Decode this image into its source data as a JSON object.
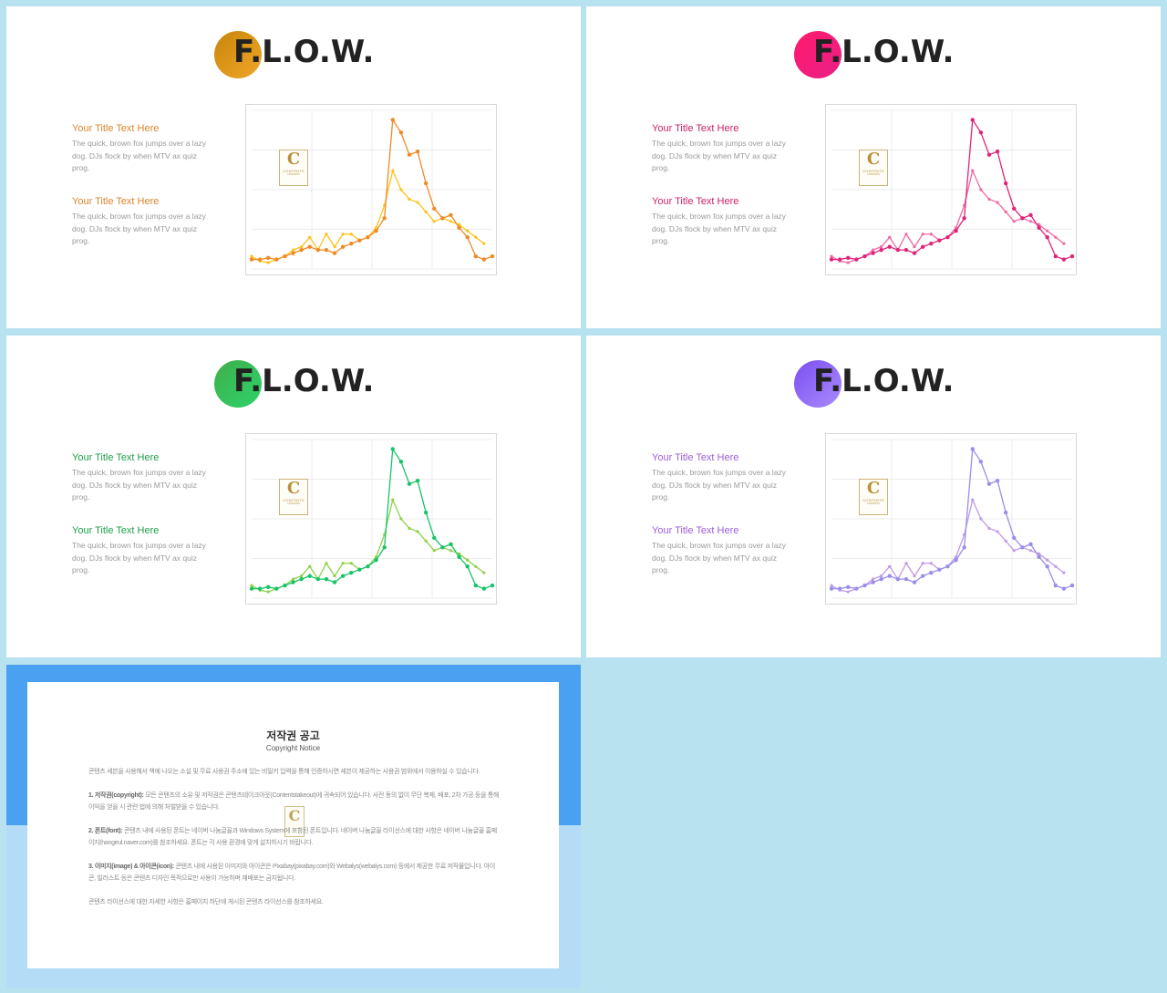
{
  "slides": [
    {
      "logo": "F.L.O.W.",
      "circle_gradient": [
        "#c8860a",
        "#f0a62a"
      ],
      "title_color": "#d9862a",
      "line_colors": [
        "#ffc21a",
        "#f08a24"
      ],
      "items": [
        {
          "title": "Your Title Text Here",
          "desc": "The quick, brown fox jumps over a lazy dog. DJs flock by when MTV ax quiz prog."
        },
        {
          "title": "Your Title Text Here",
          "desc": "The quick, brown fox jumps over a lazy dog. DJs flock by when MTV ax quiz prog."
        }
      ],
      "watermark": {
        "letter": "C",
        "text": "CONTENTS",
        "sub": "CONTENTS"
      }
    },
    {
      "logo": "F.L.O.W.",
      "circle_gradient": [
        "#ff1a6b",
        "#ea1f88"
      ],
      "title_color": "#cc1f6a",
      "line_colors": [
        "#f06aa6",
        "#e0247a"
      ],
      "items": [
        {
          "title": "Your Title Text Here",
          "desc": "The quick, brown fox jumps over a lazy dog. DJs flock by when MTV ax quiz prog."
        },
        {
          "title": "Your Title Text Here",
          "desc": "The quick, brown fox jumps over a lazy dog. DJs flock by when MTV ax quiz prog."
        }
      ],
      "watermark": {
        "letter": "C",
        "text": "CONTENTS",
        "sub": "CONTENTS"
      }
    },
    {
      "logo": "F.L.O.W.",
      "circle_gradient": [
        "#3fae4a",
        "#2ed26b"
      ],
      "title_color": "#1f9e4a",
      "line_colors": [
        "#8fd14a",
        "#16c466"
      ],
      "items": [
        {
          "title": "Your Title Text Here",
          "desc": "The quick, brown fox jumps over a lazy dog. DJs flock by when MTV ax quiz prog."
        },
        {
          "title": "Your Title Text Here",
          "desc": "The quick, brown fox jumps over a lazy dog. DJs flock by when MTV ax quiz prog."
        }
      ],
      "watermark": {
        "letter": "C",
        "text": "CONTENTS",
        "sub": "CONTENTS"
      }
    },
    {
      "logo": "F.L.O.W.",
      "circle_gradient": [
        "#7b4ff0",
        "#a98bff"
      ],
      "title_color": "#9a5fd8",
      "line_colors": [
        "#c09be8",
        "#9a8ee8"
      ],
      "items": [
        {
          "title": "Your Title Text Here",
          "desc": "The quick, brown fox jumps over a lazy dog. DJs flock by when MTV ax quiz prog."
        },
        {
          "title": "Your Title Text Here",
          "desc": "The quick, brown fox jumps over a lazy dog. DJs flock by when MTV ax quiz prog."
        }
      ],
      "watermark": {
        "letter": "C",
        "text": "CONTENTS",
        "sub": "CONTENTS"
      }
    }
  ],
  "chart_data": {
    "type": "line",
    "ylim": [
      0,
      100
    ],
    "grid": true,
    "series": [
      {
        "values": [
          8,
          5,
          4,
          6,
          8,
          12,
          14,
          20,
          12,
          22,
          14,
          22,
          22,
          18,
          20,
          26,
          40,
          62,
          50,
          44,
          42,
          36,
          30,
          32,
          30,
          28,
          24,
          20,
          16
        ]
      },
      {
        "values": [
          6,
          6,
          7,
          6,
          8,
          10,
          12,
          14,
          12,
          12,
          10,
          14,
          16,
          18,
          20,
          24,
          32,
          94,
          86,
          72,
          74,
          54,
          38,
          32,
          34,
          26,
          20,
          8,
          6,
          8
        ]
      }
    ]
  },
  "notice": {
    "title": "저작권 공고",
    "subtitle": "Copyright Notice",
    "intro": "콘텐츠 세븐을 사용해서 책에 나오는 소설 및 무료 사용권 주소에 있는 비밀키 입력을 통해 인증하시면 세븐이 제공하는 사용권 범위에서 이용하실 수 있습니다.",
    "p1_head": "1. 저작권(copyright):",
    "p1": "모든 콘텐츠의 소유 및 저작권은 콘텐츠테이크아웃(Contentstakeout)에 귀속되어 있습니다. 사전 동의 없이 무단 복제, 배포, 2차 가공 등을 통해 이익을 얻을 시 관련 법에 의해 처벌받을 수 있습니다.",
    "p2_head": "2. 폰트(font):",
    "p2": "콘텐츠 내에 사용된 폰트는 네이버 나눔글꼴과 Windows System에 포함된 폰트입니다. 네이버 나눔글꼴 라이선스에 대한 사항은 네이버 나눔글꼴 홈페이지(hangeul.naver.com)를 참조하세요. 폰트는 각 사용 환경에 맞게 설치하시기 바랍니다.",
    "p3_head": "3. 이미지(image) & 아이콘(icon):",
    "p3": "콘텐츠 내에 사용된 이미지와 아이콘은 Pixabay(pixabay.com)와 Webalys(webalys.com) 등에서 제공한 무료 저작물입니다. 아이콘, 일러스트 등은 콘텐츠 디자인 목적으로만 사용이 가능하며 재배포는 금지됩니다.",
    "outro": "콘텐츠 라이선스에 대한 자세한 사항은 홈페이지 하단에 게시된 콘텐츠 라이선스를 참조하세요.",
    "watermark_letter": "C"
  }
}
